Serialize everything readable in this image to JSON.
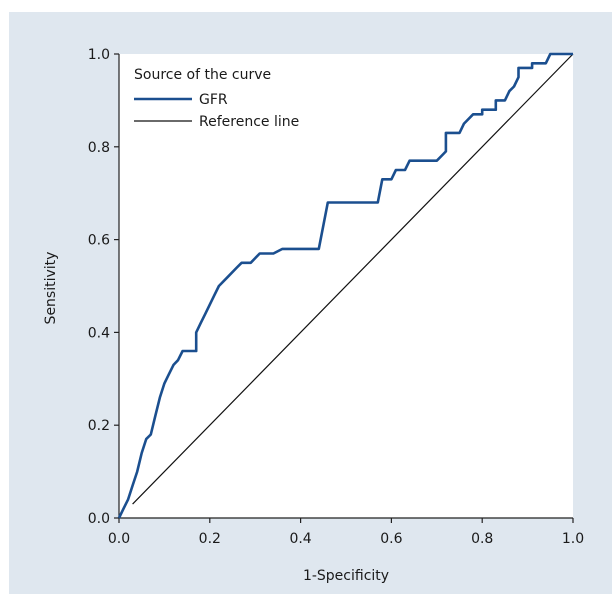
{
  "colors": {
    "panel_background": "#dfe7ef",
    "plot_background": "#ffffff",
    "gfr_line": "#1b4f8f",
    "reference_line": "#111111",
    "axis": "#222222"
  },
  "chart_data": {
    "type": "line",
    "title": "",
    "xlabel": "1-Specificity",
    "ylabel": "Sensitivity",
    "xlim": [
      0,
      1
    ],
    "ylim": [
      0,
      1
    ],
    "xticks": [
      "0.0",
      "0.2",
      "0.4",
      "0.6",
      "0.8",
      "1.0"
    ],
    "yticks": [
      "0.0",
      "0.2",
      "0.4",
      "0.6",
      "0.8",
      "1.0"
    ],
    "grid": false,
    "legend": {
      "title": "Source of the curve",
      "position": "top-left",
      "entries": [
        "GFR",
        "Reference line"
      ]
    },
    "series": [
      {
        "name": "GFR",
        "points": [
          [
            0.0,
            0.0
          ],
          [
            0.01,
            0.02
          ],
          [
            0.02,
            0.04
          ],
          [
            0.03,
            0.07
          ],
          [
            0.04,
            0.1
          ],
          [
            0.05,
            0.14
          ],
          [
            0.06,
            0.17
          ],
          [
            0.07,
            0.18
          ],
          [
            0.08,
            0.22
          ],
          [
            0.09,
            0.26
          ],
          [
            0.1,
            0.29
          ],
          [
            0.11,
            0.31
          ],
          [
            0.12,
            0.33
          ],
          [
            0.13,
            0.34
          ],
          [
            0.14,
            0.36
          ],
          [
            0.16,
            0.36
          ],
          [
            0.17,
            0.36
          ],
          [
            0.17,
            0.4
          ],
          [
            0.18,
            0.42
          ],
          [
            0.19,
            0.44
          ],
          [
            0.2,
            0.46
          ],
          [
            0.21,
            0.48
          ],
          [
            0.22,
            0.5
          ],
          [
            0.24,
            0.52
          ],
          [
            0.26,
            0.54
          ],
          [
            0.27,
            0.55
          ],
          [
            0.29,
            0.55
          ],
          [
            0.31,
            0.57
          ],
          [
            0.34,
            0.57
          ],
          [
            0.36,
            0.58
          ],
          [
            0.44,
            0.58
          ],
          [
            0.46,
            0.68
          ],
          [
            0.57,
            0.68
          ],
          [
            0.58,
            0.73
          ],
          [
            0.6,
            0.73
          ],
          [
            0.61,
            0.75
          ],
          [
            0.63,
            0.75
          ],
          [
            0.64,
            0.77
          ],
          [
            0.7,
            0.77
          ],
          [
            0.71,
            0.78
          ],
          [
            0.72,
            0.79
          ],
          [
            0.72,
            0.83
          ],
          [
            0.75,
            0.83
          ],
          [
            0.76,
            0.85
          ],
          [
            0.78,
            0.87
          ],
          [
            0.8,
            0.87
          ],
          [
            0.8,
            0.88
          ],
          [
            0.83,
            0.88
          ],
          [
            0.83,
            0.9
          ],
          [
            0.85,
            0.9
          ],
          [
            0.86,
            0.92
          ],
          [
            0.87,
            0.93
          ],
          [
            0.88,
            0.95
          ],
          [
            0.88,
            0.97
          ],
          [
            0.91,
            0.97
          ],
          [
            0.91,
            0.98
          ],
          [
            0.94,
            0.98
          ],
          [
            0.95,
            1.0
          ],
          [
            0.98,
            1.0
          ],
          [
            1.0,
            1.0
          ]
        ]
      },
      {
        "name": "Reference line",
        "points": [
          [
            0.03,
            0.03
          ],
          [
            1.0,
            1.0
          ]
        ]
      }
    ]
  }
}
